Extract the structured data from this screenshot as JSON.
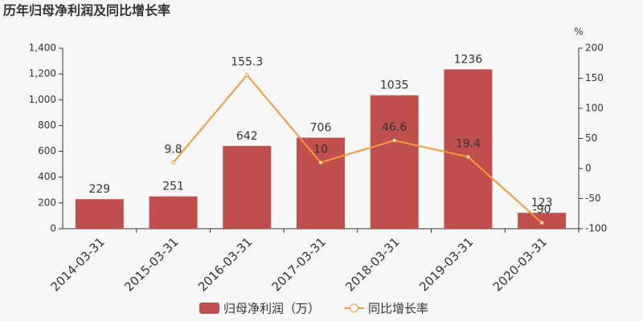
{
  "chart_data": {
    "type": "bar",
    "title": "历年归母净利润及同比增长率",
    "categories": [
      "2014-03-31",
      "2015-03-31",
      "2016-03-31",
      "2017-03-31",
      "2018-03-31",
      "2019-03-31",
      "2020-03-31"
    ],
    "series": [
      {
        "name": "归母净利润（万）",
        "type": "bar",
        "color": "#c0504d",
        "values": [
          229,
          251,
          642,
          706,
          1035,
          1236,
          123
        ]
      },
      {
        "name": "同比增长率",
        "type": "line",
        "axis": "y2",
        "color": "#f5993d",
        "values": [
          null,
          9.8,
          155.3,
          10,
          46.6,
          19.4,
          -90
        ]
      }
    ],
    "ylim": [
      0,
      1400
    ],
    "yticks": [
      0,
      200,
      400,
      600,
      800,
      {
        "value": 1000,
        "label": "1,000"
      },
      {
        "value": 1200,
        "label": "1,200"
      },
      {
        "value": 1400,
        "label": "1,400"
      }
    ],
    "y2lim": [
      -100,
      200
    ],
    "y2ticks": [
      -100,
      -50,
      0,
      50,
      100,
      150,
      200
    ],
    "y2label": "%"
  }
}
